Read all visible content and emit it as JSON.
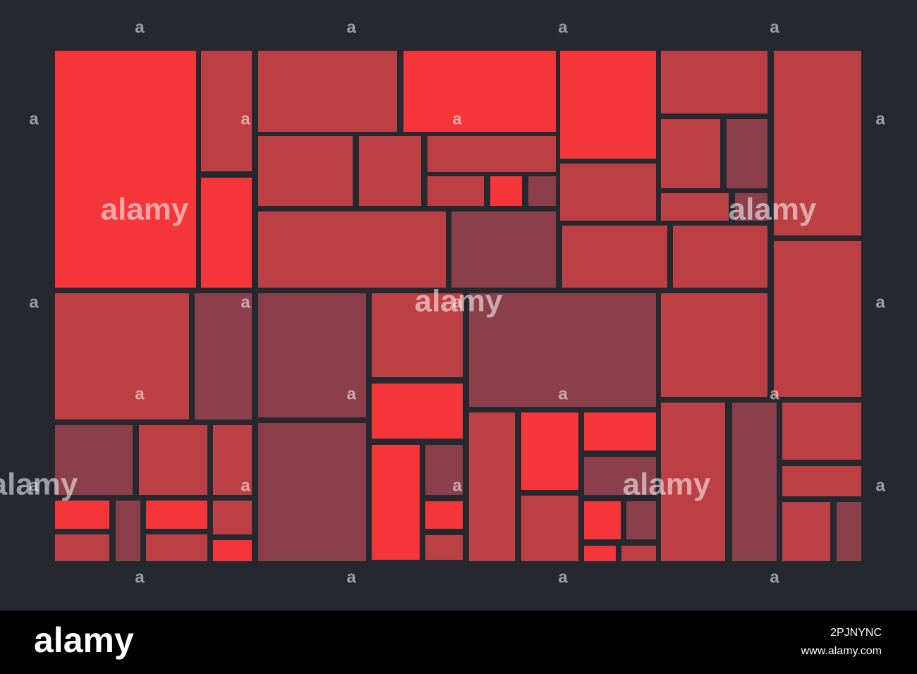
{
  "watermark": {
    "word": "alamy",
    "letter": "a"
  },
  "footer": {
    "logo": "alamy",
    "image_id": "2PJNYNC",
    "url": "www.alamy.com"
  }
}
